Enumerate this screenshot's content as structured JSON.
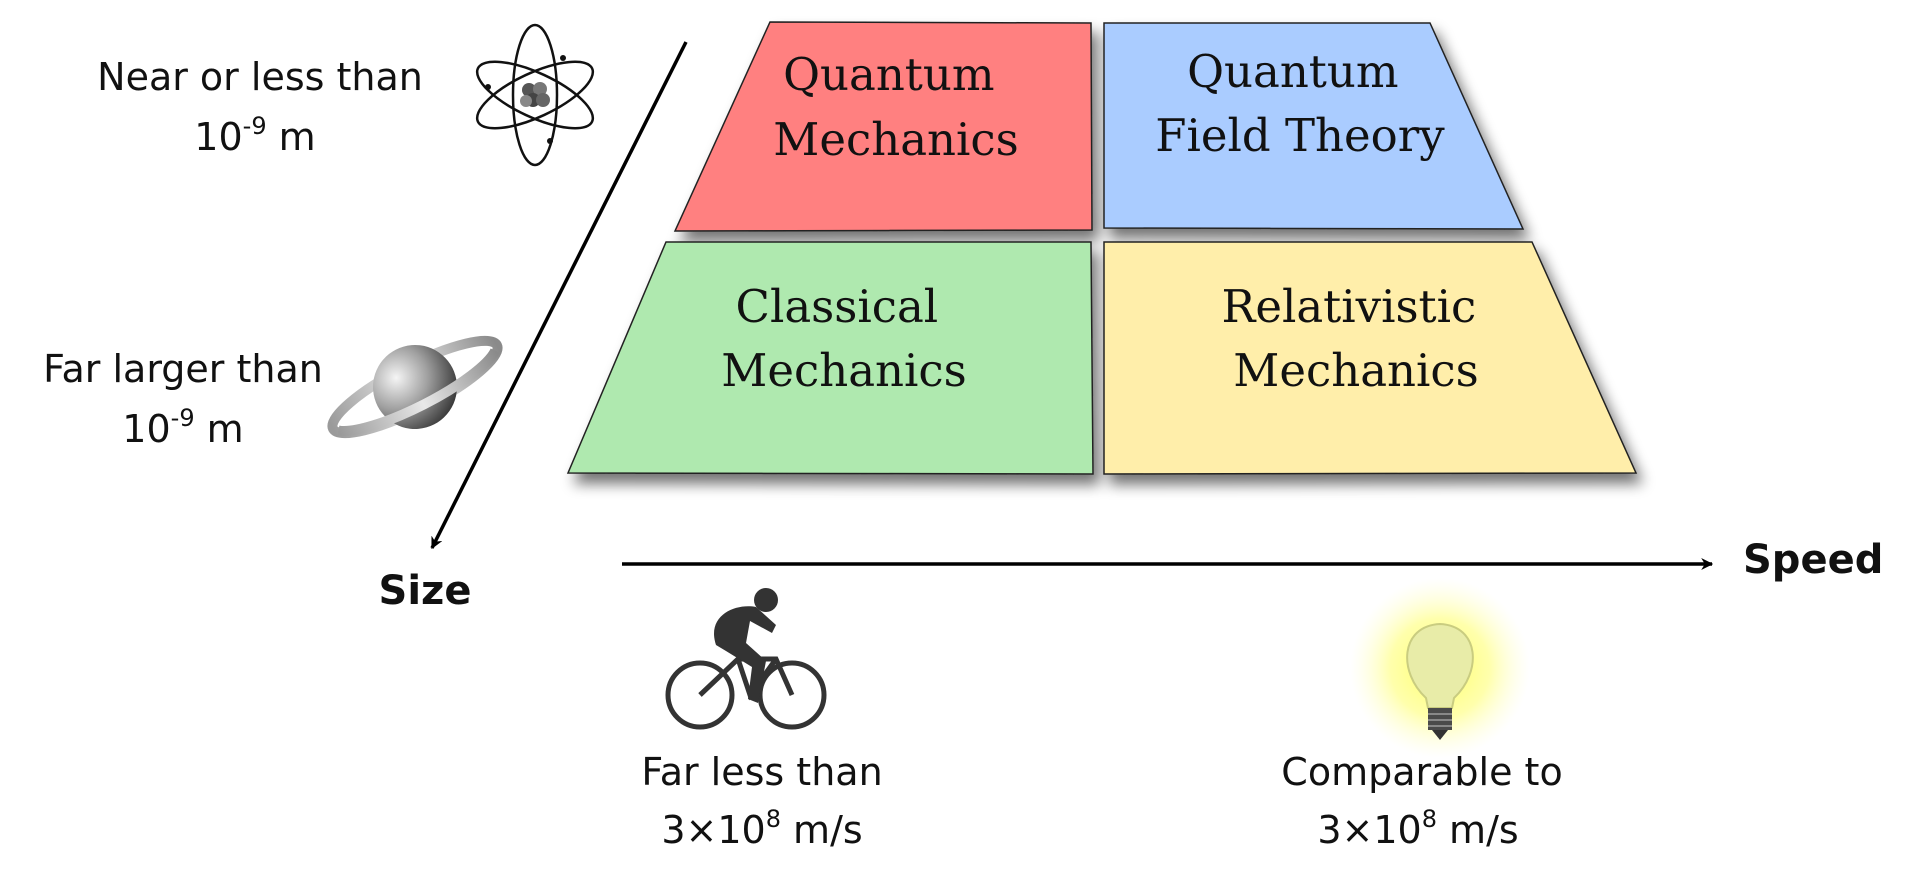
{
  "quadrants": {
    "quantum_mechanics": {
      "line1": "Quantum",
      "line2": "Mechanics",
      "color": "#ff8080"
    },
    "quantum_field_theory": {
      "line1": "Quantum",
      "line2": "Field Theory",
      "color": "#aaccff"
    },
    "classical_mechanics": {
      "line1": "Classical",
      "line2": "Mechanics",
      "color": "#afe9af"
    },
    "relativistic_mechanics": {
      "line1": "Relativistic",
      "line2": "Mechanics",
      "color": "#ffeeaa"
    }
  },
  "axes": {
    "size_label": "Size",
    "speed_label": "Speed"
  },
  "size_levels": {
    "small": {
      "line1": "Near or less than",
      "base": "10",
      "exp": "-9",
      "unit": " m",
      "icon": "atom-icon"
    },
    "large": {
      "line1": "Far larger than",
      "base": "10",
      "exp": "-9",
      "unit": " m",
      "icon": "planet-icon"
    }
  },
  "speed_levels": {
    "slow": {
      "line1": "Far less than",
      "base": "3×10",
      "exp": "8",
      "unit": " m/s",
      "icon": "cyclist-icon"
    },
    "fast": {
      "line1": "Comparable to",
      "base": "3×10",
      "exp": "8",
      "unit": " m/s",
      "icon": "light-bulb-icon"
    }
  }
}
